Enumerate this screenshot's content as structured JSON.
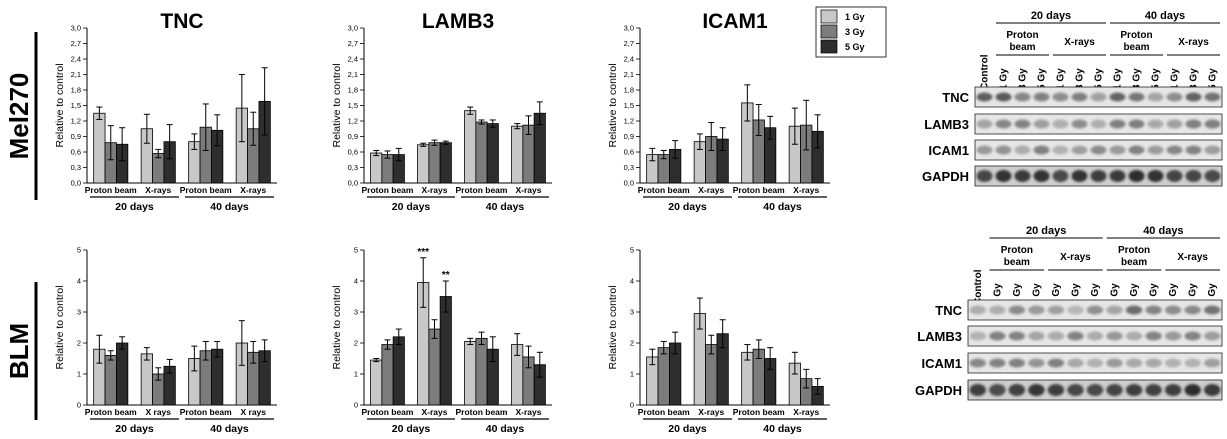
{
  "rows": [
    "Mel270",
    "BLM"
  ],
  "legend": {
    "entries": [
      "1 Gy",
      "3 Gy",
      "5 Gy"
    ],
    "colors": [
      "#c8c8c8",
      "#7c7c7c",
      "#2e2e2e"
    ]
  },
  "chart_data": [
    {
      "type": "bar",
      "title": "TNC",
      "ylabel": "Relative to control",
      "ylim": [
        0,
        3
      ],
      "yticks": [
        "0,0",
        "0,3",
        "0,6",
        "0,9",
        "1,2",
        "1,5",
        "1,8",
        "2,1",
        "2,4",
        "2,7",
        "3,0"
      ],
      "groups": [
        "Proton beam",
        "X-rays",
        "Proton beam",
        "X-rays"
      ],
      "periods": [
        "20 days",
        "40 days"
      ],
      "series": [
        {
          "name": "1 Gy",
          "values": [
            1.35,
            1.05,
            0.8,
            1.45
          ],
          "errors": [
            0.12,
            0.28,
            0.15,
            0.65
          ]
        },
        {
          "name": "3 Gy",
          "values": [
            0.78,
            0.57,
            1.08,
            1.05
          ],
          "errors": [
            0.33,
            0.08,
            0.45,
            0.32
          ]
        },
        {
          "name": "5 Gy",
          "values": [
            0.75,
            0.8,
            1.02,
            1.58
          ],
          "errors": [
            0.32,
            0.33,
            0.3,
            0.65
          ]
        }
      ],
      "annotations": []
    },
    {
      "type": "bar",
      "title": "LAMB3",
      "ylabel": "Relative to control",
      "ylim": [
        0,
        3
      ],
      "yticks": [
        "0,0",
        "0,3",
        "0,6",
        "0,9",
        "1,2",
        "1,5",
        "1,8",
        "2,1",
        "2,4",
        "2,7",
        "3,0"
      ],
      "groups": [
        "Proton beam",
        "X-rays",
        "Proton beam",
        "X-rays"
      ],
      "periods": [
        "20 days",
        "40 days"
      ],
      "series": [
        {
          "name": "1 Gy",
          "values": [
            0.58,
            0.74,
            1.4,
            1.1
          ],
          "errors": [
            0.05,
            0.03,
            0.07,
            0.05
          ]
        },
        {
          "name": "3 Gy",
          "values": [
            0.55,
            0.78,
            1.18,
            1.12
          ],
          "errors": [
            0.07,
            0.05,
            0.04,
            0.18
          ]
        },
        {
          "name": "5 Gy",
          "values": [
            0.55,
            0.78,
            1.15,
            1.35
          ],
          "errors": [
            0.12,
            0.03,
            0.07,
            0.22
          ]
        }
      ],
      "annotations": []
    },
    {
      "type": "bar",
      "title": "ICAM1",
      "ylabel": "Relative to control",
      "ylim": [
        0,
        3
      ],
      "yticks": [
        "0,0",
        "0,3",
        "0,6",
        "0,9",
        "1,2",
        "1,5",
        "1,8",
        "2,1",
        "2,4",
        "2,7",
        "3,0"
      ],
      "groups": [
        "Proton beam",
        "X-rays",
        "Proton beam",
        "X-rays"
      ],
      "periods": [
        "20 days",
        "40 days"
      ],
      "series": [
        {
          "name": "1 Gy",
          "values": [
            0.55,
            0.8,
            1.55,
            1.1
          ],
          "errors": [
            0.12,
            0.15,
            0.35,
            0.35
          ]
        },
        {
          "name": "3 Gy",
          "values": [
            0.55,
            0.9,
            1.22,
            1.12
          ],
          "errors": [
            0.08,
            0.27,
            0.3,
            0.48
          ]
        },
        {
          "name": "5 Gy",
          "values": [
            0.65,
            0.85,
            1.07,
            1.0
          ],
          "errors": [
            0.17,
            0.22,
            0.22,
            0.32
          ]
        }
      ],
      "annotations": []
    },
    {
      "type": "bar",
      "title": "",
      "ylabel": "Relative to control",
      "ylim": [
        0,
        5
      ],
      "yticks": [
        "0",
        "1",
        "2",
        "3",
        "4",
        "5"
      ],
      "groups": [
        "Proton beam",
        "X rays",
        "Proton beam",
        "X rays"
      ],
      "periods": [
        "20 days",
        "40 days"
      ],
      "series": [
        {
          "name": "1 Gy",
          "values": [
            1.8,
            1.65,
            1.5,
            2.0
          ],
          "errors": [
            0.45,
            0.2,
            0.4,
            0.72
          ]
        },
        {
          "name": "3 Gy",
          "values": [
            1.6,
            1.0,
            1.75,
            1.7
          ],
          "errors": [
            0.15,
            0.2,
            0.3,
            0.35
          ]
        },
        {
          "name": "5 Gy",
          "values": [
            2.0,
            1.25,
            1.8,
            1.75
          ],
          "errors": [
            0.2,
            0.22,
            0.25,
            0.35
          ]
        }
      ],
      "annotations": []
    },
    {
      "type": "bar",
      "title": "",
      "ylabel": "Relative to control",
      "ylim": [
        0,
        5
      ],
      "yticks": [
        "0",
        "1",
        "2",
        "3",
        "4",
        "5"
      ],
      "groups": [
        "Proton beam",
        "X-rays",
        "Proton beam",
        "X-rays"
      ],
      "periods": [
        "20 days",
        "40 days"
      ],
      "series": [
        {
          "name": "1 Gy",
          "values": [
            1.45,
            3.95,
            2.05,
            1.95
          ],
          "errors": [
            0.05,
            0.8,
            0.1,
            0.35
          ]
        },
        {
          "name": "3 Gy",
          "values": [
            1.95,
            2.45,
            2.15,
            1.55
          ],
          "errors": [
            0.15,
            0.3,
            0.2,
            0.35
          ]
        },
        {
          "name": "5 Gy",
          "values": [
            2.2,
            3.5,
            1.8,
            1.3
          ],
          "errors": [
            0.25,
            0.5,
            0.4,
            0.4
          ]
        }
      ],
      "annotations": [
        {
          "text": "***",
          "group": 1,
          "series": 0
        },
        {
          "text": "**",
          "group": 1,
          "series": 2
        }
      ]
    },
    {
      "type": "bar",
      "title": "",
      "ylabel": "Relative to control",
      "ylim": [
        0,
        5
      ],
      "yticks": [
        "0",
        "1",
        "2",
        "3",
        "4",
        "5"
      ],
      "groups": [
        "Proton beam",
        "X-rays",
        "Proton beam",
        "X-rays"
      ],
      "periods": [
        "20 days",
        "40 days"
      ],
      "series": [
        {
          "name": "1 Gy",
          "values": [
            1.55,
            2.95,
            1.7,
            1.35
          ],
          "errors": [
            0.25,
            0.5,
            0.25,
            0.35
          ]
        },
        {
          "name": "3 Gy",
          "values": [
            1.85,
            1.95,
            1.8,
            0.85
          ],
          "errors": [
            0.2,
            0.3,
            0.3,
            0.3
          ]
        },
        {
          "name": "5 Gy",
          "values": [
            2.0,
            2.3,
            1.5,
            0.6
          ],
          "errors": [
            0.35,
            0.45,
            0.35,
            0.25
          ]
        }
      ],
      "annotations": []
    }
  ],
  "blots": [
    {
      "periods": [
        "20 days",
        "40 days"
      ],
      "treatments": [
        "Proton beam",
        "X-rays",
        "Proton beam",
        "X-rays"
      ],
      "lanes": [
        "Control",
        "1 Gy",
        "3 Gy",
        "5 Gy",
        "1 Gy",
        "3 Gy",
        "5 Gy",
        "1 Gy",
        "3 Gy",
        "5 Gy",
        "1 Gy",
        "3 Gy",
        "5 Gy"
      ],
      "proteins": [
        "TNC",
        "LAMB3",
        "ICAM1",
        "GAPDH"
      ]
    },
    {
      "periods": [
        "20 days",
        "40 days"
      ],
      "treatments": [
        "Proton beam",
        "X-rays",
        "Proton beam",
        "X-rays"
      ],
      "lanes": [
        "Control",
        "1 Gy",
        "3 Gy",
        "5 Gy",
        "1 Gy",
        "3 Gy",
        "5 Gy",
        "1 Gy",
        "3 Gy",
        "5 Gy",
        "1 Gy",
        "3 Gy",
        "5 Gy"
      ],
      "proteins": [
        "TNC",
        "LAMB3",
        "ICAM1",
        "GAPDH"
      ]
    }
  ]
}
